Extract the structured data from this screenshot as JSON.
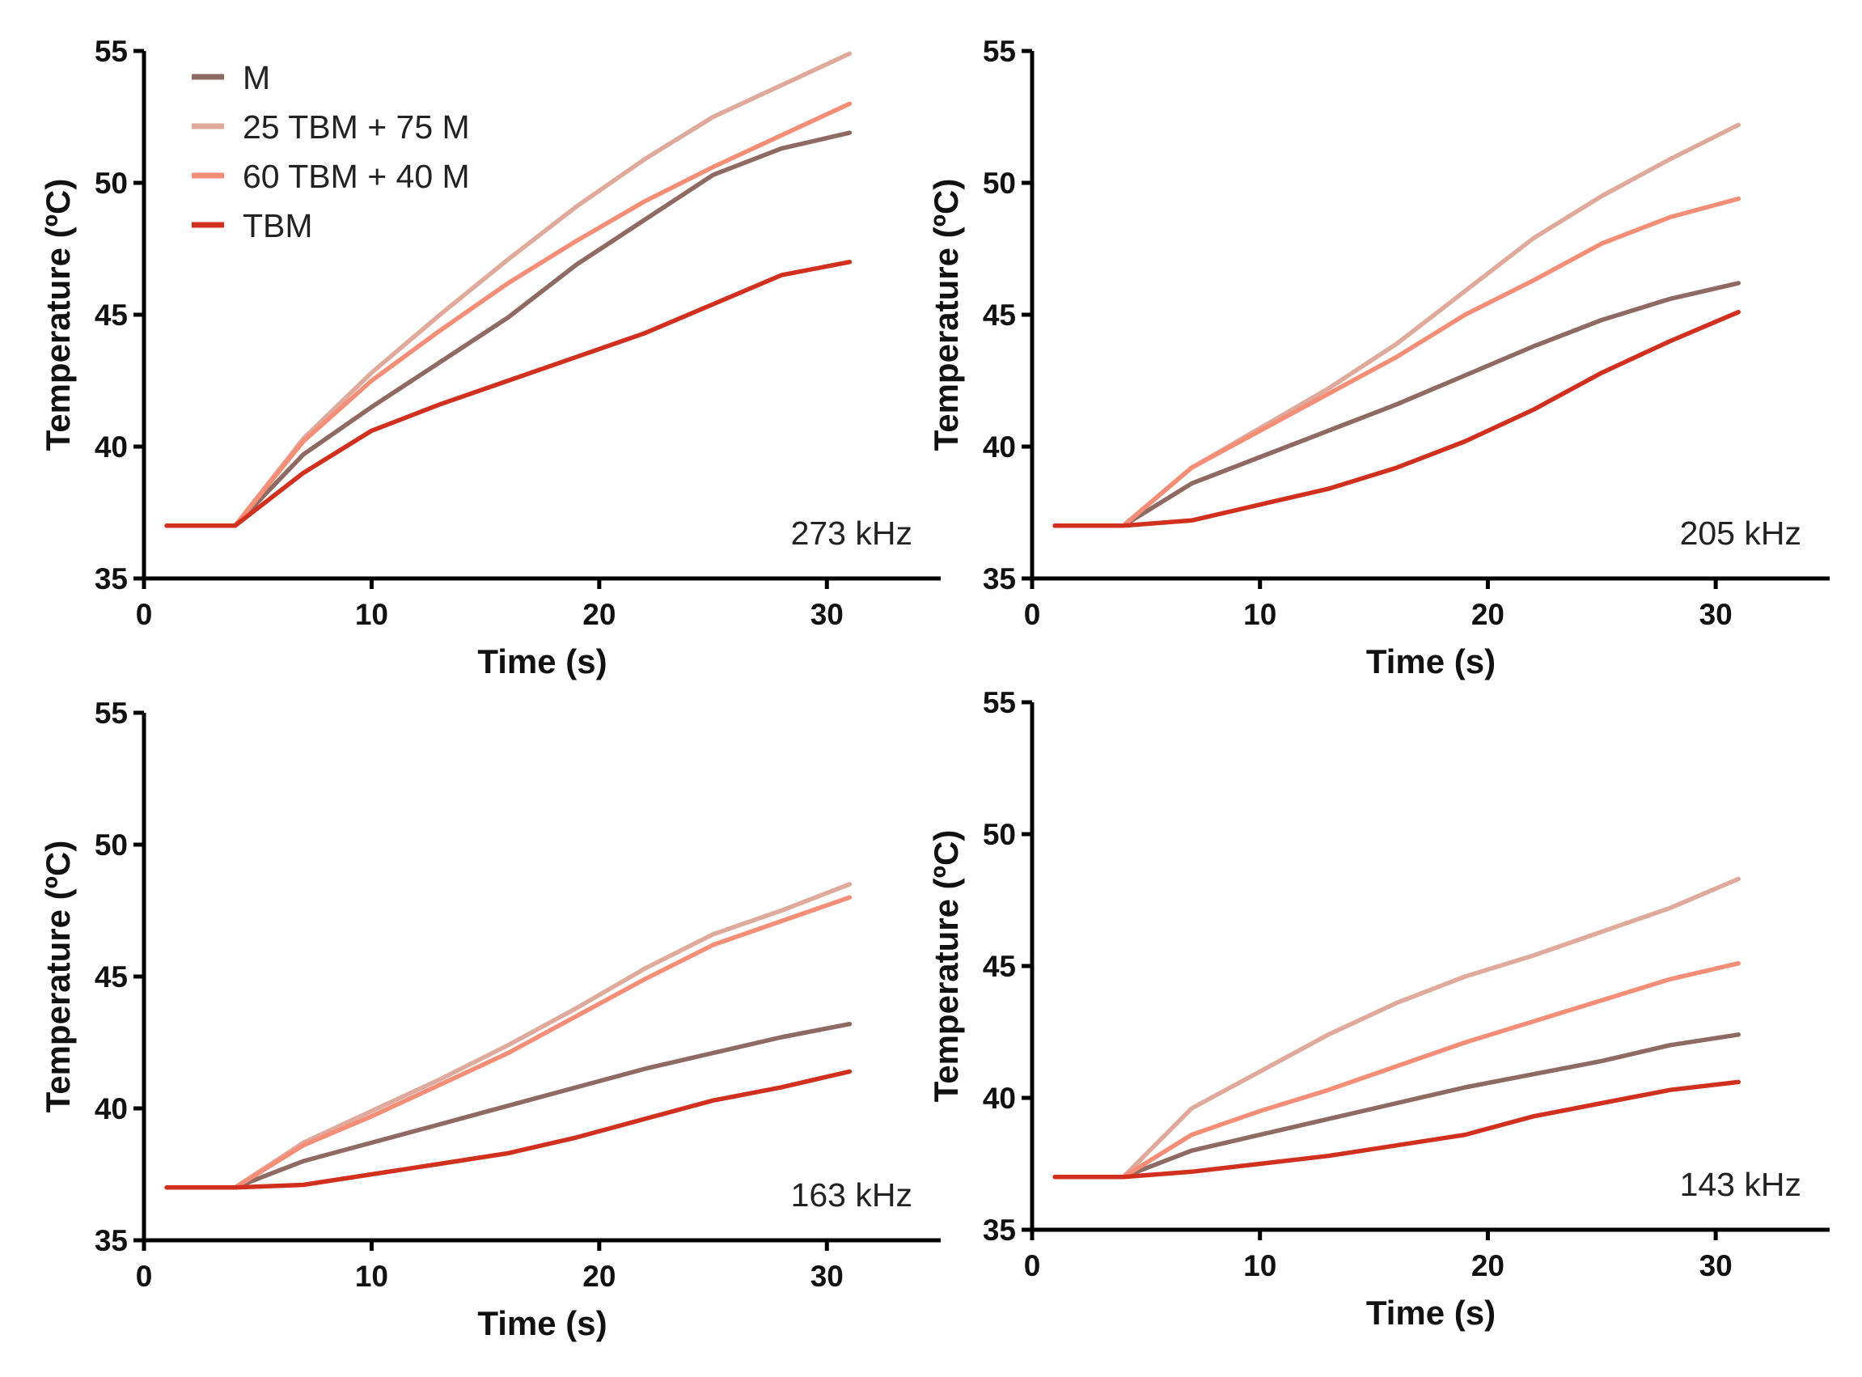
{
  "series_styles": [
    {
      "name": "M",
      "color": "#8e6a62"
    },
    {
      "name": "25 TBM + 75 M",
      "color": "#dfaa9c"
    },
    {
      "name": "60 TBM + 40 M",
      "color": "#f58d77"
    },
    {
      "name": "TBM",
      "color": "#d2301f"
    }
  ],
  "chart_data": [
    {
      "type": "line",
      "annotation": "273 kHz",
      "xlabel": "Time (s)",
      "ylabel": "Temperature (ºC)",
      "xlim": [
        0,
        35
      ],
      "ylim": [
        35,
        55
      ],
      "xticks": [
        0,
        10,
        20,
        30
      ],
      "yticks": [
        35,
        40,
        45,
        50,
        55
      ],
      "legend": [
        "M",
        "25 TBM + 75 M",
        "60 TBM + 40 M",
        "TBM"
      ],
      "x": [
        1,
        4,
        7,
        10,
        13,
        16,
        19,
        22,
        25,
        28,
        31
      ],
      "series": [
        {
          "name": "M",
          "values": [
            37,
            37,
            39.7,
            41.5,
            43.2,
            44.9,
            46.9,
            48.6,
            50.3,
            51.3,
            51.9
          ]
        },
        {
          "name": "25 TBM + 75 M",
          "values": [
            37,
            37,
            40.3,
            42.8,
            45.0,
            47.1,
            49.1,
            50.9,
            52.5,
            53.7,
            54.9
          ]
        },
        {
          "name": "60 TBM + 40 M",
          "values": [
            37,
            37,
            40.2,
            42.5,
            44.4,
            46.2,
            47.8,
            49.3,
            50.6,
            51.8,
            53.0
          ]
        },
        {
          "name": "TBM",
          "values": [
            37,
            37,
            39.0,
            40.6,
            41.6,
            42.5,
            43.4,
            44.3,
            45.4,
            46.5,
            47.0
          ]
        }
      ]
    },
    {
      "type": "line",
      "annotation": "205 kHz",
      "xlabel": "Time (s)",
      "ylabel": "Temperature (ºC)",
      "xlim": [
        0,
        35
      ],
      "ylim": [
        35,
        55
      ],
      "xticks": [
        0,
        10,
        20,
        30
      ],
      "yticks": [
        35,
        40,
        45,
        50,
        55
      ],
      "x": [
        1,
        4,
        7,
        10,
        13,
        16,
        19,
        22,
        25,
        28,
        31
      ],
      "series": [
        {
          "name": "M",
          "values": [
            37,
            37,
            38.6,
            39.6,
            40.6,
            41.6,
            42.7,
            43.8,
            44.8,
            45.6,
            46.2
          ]
        },
        {
          "name": "25 TBM + 75 M",
          "values": [
            37,
            37,
            39.2,
            40.7,
            42.2,
            43.9,
            45.9,
            47.9,
            49.5,
            50.9,
            52.2
          ]
        },
        {
          "name": "60 TBM + 40 M",
          "values": [
            37,
            37,
            39.2,
            40.6,
            42.0,
            43.4,
            45.0,
            46.3,
            47.7,
            48.7,
            49.4
          ]
        },
        {
          "name": "TBM",
          "values": [
            37,
            37,
            37.2,
            37.8,
            38.4,
            39.2,
            40.2,
            41.4,
            42.8,
            44.0,
            45.1
          ]
        }
      ]
    },
    {
      "type": "line",
      "annotation": "163 kHz",
      "xlabel": "Time (s)",
      "ylabel": "Temperature (ºC)",
      "xlim": [
        0,
        35
      ],
      "ylim": [
        35,
        55
      ],
      "xticks": [
        0,
        10,
        20,
        30
      ],
      "yticks": [
        35,
        40,
        45,
        50,
        55
      ],
      "x": [
        1,
        4,
        7,
        10,
        13,
        16,
        19,
        22,
        25,
        28,
        31
      ],
      "series": [
        {
          "name": "M",
          "values": [
            37,
            37,
            38.0,
            38.7,
            39.4,
            40.1,
            40.8,
            41.5,
            42.1,
            42.7,
            43.2
          ]
        },
        {
          "name": "25 TBM + 75 M",
          "values": [
            37,
            37,
            38.7,
            39.9,
            41.1,
            42.4,
            43.8,
            45.3,
            46.6,
            47.5,
            48.5
          ]
        },
        {
          "name": "60 TBM + 40 M",
          "values": [
            37,
            37,
            38.6,
            39.7,
            40.9,
            42.1,
            43.5,
            44.9,
            46.2,
            47.1,
            48.0
          ]
        },
        {
          "name": "TBM",
          "values": [
            37,
            37,
            37.1,
            37.5,
            37.9,
            38.3,
            38.9,
            39.6,
            40.3,
            40.8,
            41.4
          ]
        }
      ]
    },
    {
      "type": "line",
      "annotation": "143 kHz",
      "xlabel": "Time (s)",
      "ylabel": "Temperature (ºC)",
      "xlim": [
        0,
        35
      ],
      "ylim": [
        35,
        55
      ],
      "xticks": [
        0,
        10,
        20,
        30
      ],
      "yticks": [
        35,
        40,
        45,
        50,
        55
      ],
      "x": [
        1,
        4,
        7,
        10,
        13,
        16,
        19,
        22,
        25,
        28,
        31
      ],
      "series": [
        {
          "name": "M",
          "values": [
            37,
            37,
            38.0,
            38.6,
            39.2,
            39.8,
            40.4,
            40.9,
            41.4,
            42.0,
            42.4
          ]
        },
        {
          "name": "25 TBM + 75 M",
          "values": [
            37,
            37,
            39.6,
            41.0,
            42.4,
            43.6,
            44.6,
            45.4,
            46.3,
            47.2,
            48.3
          ]
        },
        {
          "name": "60 TBM + 40 M",
          "values": [
            37,
            37,
            38.6,
            39.5,
            40.3,
            41.2,
            42.1,
            42.9,
            43.7,
            44.5,
            45.1
          ]
        },
        {
          "name": "TBM",
          "values": [
            37,
            37,
            37.2,
            37.5,
            37.8,
            38.2,
            38.6,
            39.3,
            39.8,
            40.3,
            40.6
          ]
        }
      ]
    }
  ]
}
